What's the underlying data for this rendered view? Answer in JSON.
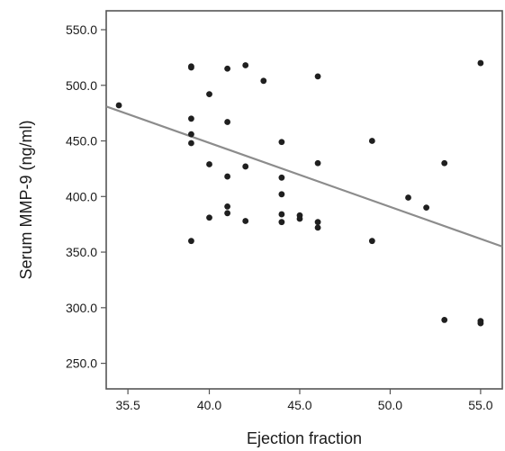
{
  "chart_data": {
    "type": "scatter",
    "title": "",
    "xlabel": "Ejection fraction",
    "ylabel": "Serum MMP-9 (ng/ml)",
    "xlim": [
      34.3,
      56.2
    ],
    "ylim": [
      227,
      567
    ],
    "x_ticks": [
      35.5,
      40.0,
      45.0,
      50.0,
      55.0
    ],
    "x_tick_labels": [
      "35.5",
      "40.0",
      "45.0",
      "50.0",
      "55.0"
    ],
    "y_ticks": [
      250,
      300,
      350,
      400,
      450,
      500,
      550
    ],
    "y_tick_labels": [
      "250.0",
      "300.0",
      "350.0",
      "400.0",
      "450.0",
      "500.0",
      "550.0"
    ],
    "grid": false,
    "legend": "none",
    "colors": {
      "points": "#1f1f1f",
      "fit_line": "#8c8c8c",
      "frame": "#555555"
    },
    "points": [
      {
        "x": 35,
        "y": 482
      },
      {
        "x": 39,
        "y": 517
      },
      {
        "x": 39,
        "y": 516
      },
      {
        "x": 39,
        "y": 470
      },
      {
        "x": 39,
        "y": 456
      },
      {
        "x": 39,
        "y": 448
      },
      {
        "x": 39,
        "y": 360
      },
      {
        "x": 40,
        "y": 492
      },
      {
        "x": 40,
        "y": 429
      },
      {
        "x": 40,
        "y": 381
      },
      {
        "x": 41,
        "y": 515
      },
      {
        "x": 41,
        "y": 467
      },
      {
        "x": 41,
        "y": 418
      },
      {
        "x": 41,
        "y": 391
      },
      {
        "x": 41,
        "y": 385
      },
      {
        "x": 42,
        "y": 518
      },
      {
        "x": 42,
        "y": 427
      },
      {
        "x": 42,
        "y": 378
      },
      {
        "x": 43,
        "y": 504
      },
      {
        "x": 44,
        "y": 449
      },
      {
        "x": 44,
        "y": 417
      },
      {
        "x": 44,
        "y": 402
      },
      {
        "x": 44,
        "y": 384
      },
      {
        "x": 44,
        "y": 377
      },
      {
        "x": 45,
        "y": 383
      },
      {
        "x": 45,
        "y": 380
      },
      {
        "x": 46,
        "y": 508
      },
      {
        "x": 46,
        "y": 430
      },
      {
        "x": 46,
        "y": 377
      },
      {
        "x": 46,
        "y": 372
      },
      {
        "x": 49,
        "y": 450
      },
      {
        "x": 49,
        "y": 360
      },
      {
        "x": 51,
        "y": 399
      },
      {
        "x": 52,
        "y": 390
      },
      {
        "x": 53,
        "y": 430
      },
      {
        "x": 53,
        "y": 289
      },
      {
        "x": 55,
        "y": 520
      },
      {
        "x": 55,
        "y": 288
      },
      {
        "x": 55,
        "y": 286
      }
    ],
    "fit_line": {
      "x1": 34.3,
      "y1": 481,
      "x2": 56.2,
      "y2": 355
    }
  }
}
